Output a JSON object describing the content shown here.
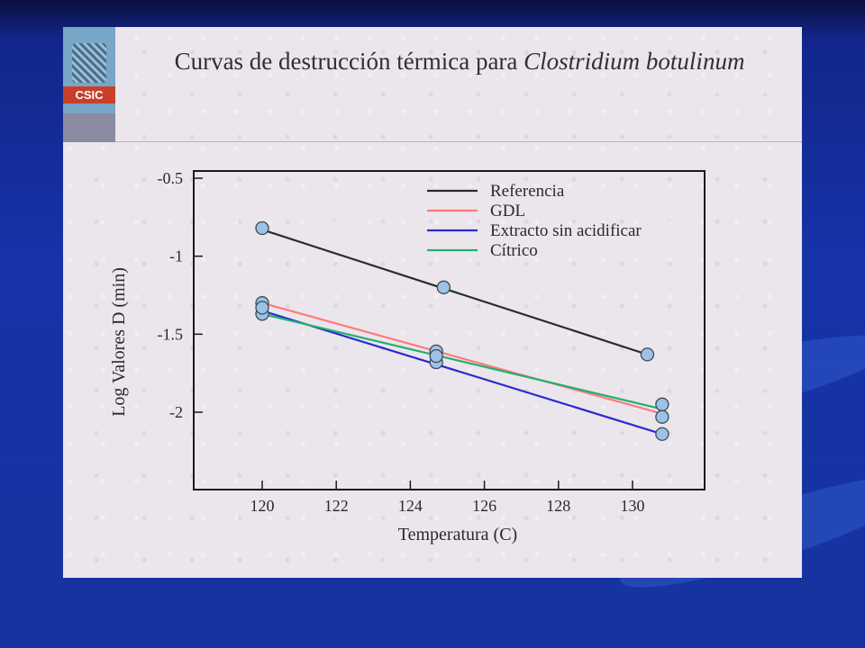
{
  "slide": {
    "logo_text": "CSIC",
    "title_main": "Curvas de destrucción térmica para ",
    "title_italic": "Clostridium botulinum"
  },
  "chart_data": {
    "type": "line",
    "title": "Curvas de destrucción térmica para Clostridium botulinum",
    "xlabel": "Temperatura (C)",
    "ylabel": "Log Valores D (min)",
    "xlim": [
      119.5,
      132
    ],
    "ylim": [
      -2.5,
      -0.5
    ],
    "xticks": [
      120,
      122,
      124,
      126,
      128,
      130
    ],
    "yticks": [
      -0.5,
      -1,
      -1.5,
      -2
    ],
    "legend_position": "top-right",
    "grid": false,
    "series": [
      {
        "name": "Referencia",
        "color": "#2b2b2b",
        "line": [
          [
            120,
            -0.83
          ],
          [
            130.4,
            -1.63
          ]
        ],
        "points": [
          [
            120,
            -0.82
          ],
          [
            124.9,
            -1.2
          ],
          [
            130.4,
            -1.63
          ]
        ]
      },
      {
        "name": "GDL",
        "color": "#ff7a7a",
        "line": [
          [
            120,
            -1.3
          ],
          [
            130.8,
            -2.01
          ]
        ],
        "points": [
          [
            120,
            -1.3
          ],
          [
            124.7,
            -1.61
          ],
          [
            130.8,
            -2.03
          ]
        ]
      },
      {
        "name": "Extracto sin acidificar",
        "color": "#2a2ad0",
        "line": [
          [
            120,
            -1.35
          ],
          [
            130.8,
            -2.14
          ]
        ],
        "points": [
          [
            120,
            -1.37
          ],
          [
            124.7,
            -1.68
          ],
          [
            130.8,
            -2.14
          ]
        ]
      },
      {
        "name": "Cítrico",
        "color": "#20b070",
        "line": [
          [
            120,
            -1.37
          ],
          [
            130.8,
            -1.98
          ]
        ],
        "points": [
          [
            120,
            -1.33
          ],
          [
            124.7,
            -1.64
          ],
          [
            130.8,
            -1.95
          ]
        ]
      }
    ]
  }
}
